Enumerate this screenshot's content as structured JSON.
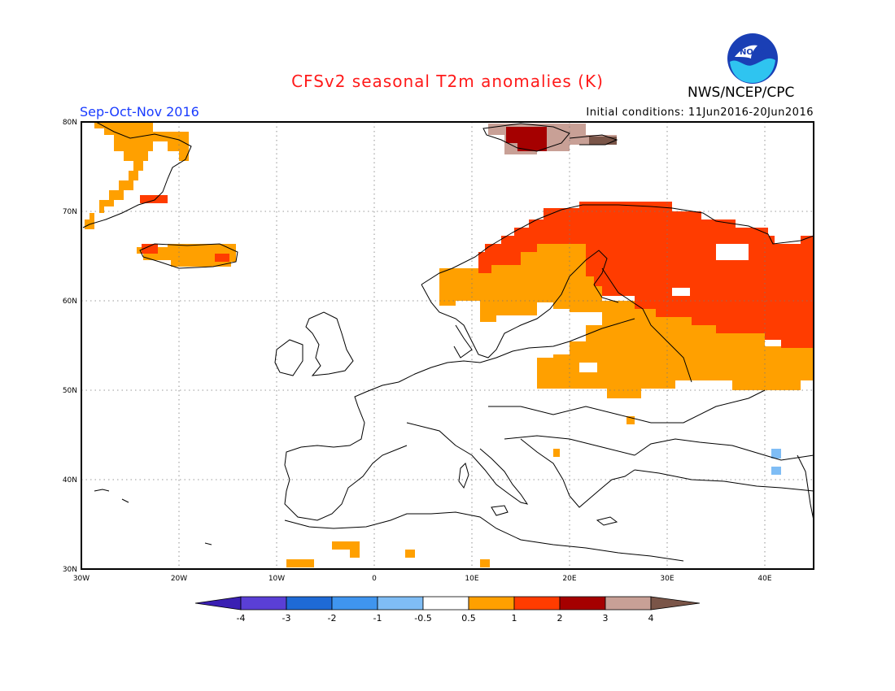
{
  "header": {
    "title": "CFSv2 seasonal T2m anomalies (K)",
    "season": "Sep-Oct-Nov 2016",
    "initial_conditions": "Initial conditions: 11Jun2016-20Jun2016",
    "agency": "NWS/NCEP/CPC",
    "logo_text": "NOAA"
  },
  "axes": {
    "lon_labels": [
      "30W",
      "20W",
      "10W",
      "0",
      "10E",
      "20E",
      "30E",
      "40E"
    ],
    "lat_labels": [
      "30N",
      "40N",
      "50N",
      "60N",
      "70N",
      "80N"
    ],
    "lon_range": [
      -30,
      45
    ],
    "lat_range": [
      30,
      80
    ]
  },
  "colorbar": {
    "labels": [
      "-4",
      "-3",
      "-2",
      "-1",
      "-0.5",
      "0.5",
      "1",
      "2",
      "3",
      "4"
    ],
    "colors": [
      "#3a1fb3",
      "#5a3fd6",
      "#1e6ad6",
      "#3f95ef",
      "#7fbdf5",
      "#ffffff",
      "#ffa000",
      "#ff3c00",
      "#a50000",
      "#c8a096",
      "#7a5548"
    ]
  },
  "anomaly_colors": {
    "0.5to1": "#ffa000",
    "1to2": "#ff3c00",
    "2to3": "#a50000",
    "3to4": "#c8a096",
    "gt4": "#7a5548",
    "-1to-0.5": "#7fbdf5"
  }
}
